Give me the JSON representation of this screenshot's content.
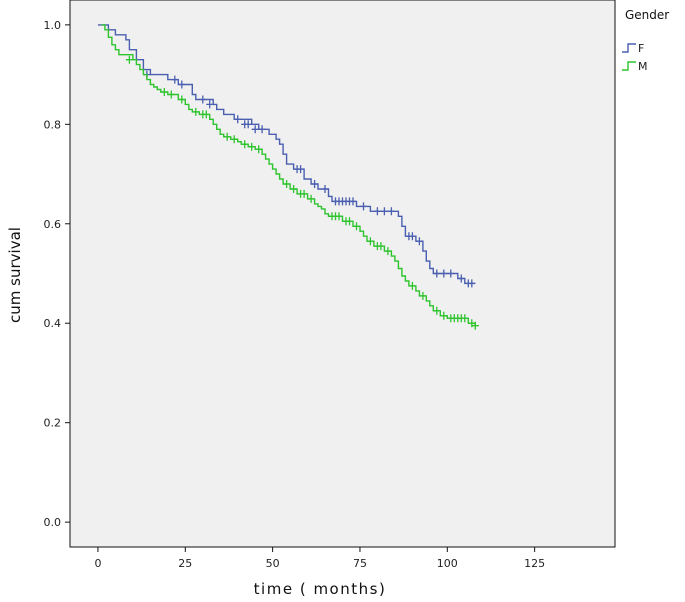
{
  "chart_data": {
    "type": "line",
    "title": "",
    "xlabel": "time ( months)",
    "ylabel": "cum survival",
    "xlim": [
      -8,
      148
    ],
    "ylim": [
      -0.05,
      1.05
    ],
    "xticks": [
      0,
      25,
      50,
      75,
      100,
      125
    ],
    "yticks": [
      0.0,
      0.2,
      0.4,
      0.6,
      0.8,
      1.0
    ],
    "ytick_labels": [
      "0.0",
      "0.2",
      "0.4",
      "0.6",
      "0.8",
      "1.0"
    ],
    "grid": false,
    "legend": {
      "title": "Gender",
      "placement": "right-outside-top"
    },
    "series": [
      {
        "name": "F",
        "color": "#4a5fb0",
        "steps": [
          [
            0,
            1.0
          ],
          [
            3,
            0.99
          ],
          [
            5,
            0.98
          ],
          [
            8,
            0.97
          ],
          [
            9,
            0.95
          ],
          [
            11,
            0.93
          ],
          [
            13,
            0.91
          ],
          [
            15,
            0.9
          ],
          [
            20,
            0.89
          ],
          [
            23,
            0.88
          ],
          [
            27,
            0.86
          ],
          [
            28,
            0.85
          ],
          [
            33,
            0.84
          ],
          [
            34,
            0.83
          ],
          [
            36,
            0.82
          ],
          [
            39,
            0.81
          ],
          [
            44,
            0.8
          ],
          [
            46,
            0.79
          ],
          [
            49,
            0.78
          ],
          [
            51,
            0.77
          ],
          [
            52,
            0.76
          ],
          [
            53,
            0.74
          ],
          [
            54,
            0.72
          ],
          [
            56,
            0.71
          ],
          [
            59,
            0.69
          ],
          [
            61,
            0.68
          ],
          [
            63,
            0.67
          ],
          [
            66,
            0.655
          ],
          [
            67,
            0.645
          ],
          [
            74,
            0.635
          ],
          [
            78,
            0.625
          ],
          [
            86,
            0.615
          ],
          [
            87,
            0.595
          ],
          [
            88,
            0.575
          ],
          [
            91,
            0.565
          ],
          [
            93,
            0.545
          ],
          [
            94,
            0.525
          ],
          [
            95,
            0.51
          ],
          [
            96,
            0.5
          ],
          [
            103,
            0.49
          ],
          [
            105,
            0.48
          ],
          [
            108,
            0.48
          ]
        ],
        "censored": [
          [
            14,
            0.9
          ],
          [
            22,
            0.89
          ],
          [
            24,
            0.88
          ],
          [
            30,
            0.85
          ],
          [
            32,
            0.84
          ],
          [
            40,
            0.81
          ],
          [
            42,
            0.8
          ],
          [
            43,
            0.8
          ],
          [
            45,
            0.79
          ],
          [
            47,
            0.79
          ],
          [
            57,
            0.71
          ],
          [
            58,
            0.71
          ],
          [
            62,
            0.68
          ],
          [
            65,
            0.67
          ],
          [
            68,
            0.645
          ],
          [
            69,
            0.645
          ],
          [
            70,
            0.645
          ],
          [
            71,
            0.645
          ],
          [
            72,
            0.645
          ],
          [
            73,
            0.645
          ],
          [
            76,
            0.635
          ],
          [
            80,
            0.625
          ],
          [
            82,
            0.625
          ],
          [
            84,
            0.625
          ],
          [
            89,
            0.575
          ],
          [
            90,
            0.575
          ],
          [
            92,
            0.565
          ],
          [
            97,
            0.5
          ],
          [
            99,
            0.5
          ],
          [
            101,
            0.5
          ],
          [
            104,
            0.49
          ],
          [
            106,
            0.48
          ],
          [
            107,
            0.48
          ]
        ]
      },
      {
        "name": "M",
        "color": "#2ec42e",
        "steps": [
          [
            1,
            1.0
          ],
          [
            2,
            0.99
          ],
          [
            3,
            0.975
          ],
          [
            4,
            0.96
          ],
          [
            5,
            0.95
          ],
          [
            6,
            0.94
          ],
          [
            10,
            0.93
          ],
          [
            11,
            0.92
          ],
          [
            12,
            0.91
          ],
          [
            13,
            0.9
          ],
          [
            14,
            0.89
          ],
          [
            15,
            0.88
          ],
          [
            16,
            0.875
          ],
          [
            17,
            0.87
          ],
          [
            18,
            0.865
          ],
          [
            20,
            0.86
          ],
          [
            23,
            0.85
          ],
          [
            25,
            0.84
          ],
          [
            26,
            0.83
          ],
          [
            27,
            0.825
          ],
          [
            29,
            0.82
          ],
          [
            32,
            0.81
          ],
          [
            33,
            0.8
          ],
          [
            34,
            0.79
          ],
          [
            35,
            0.78
          ],
          [
            36,
            0.775
          ],
          [
            38,
            0.77
          ],
          [
            40,
            0.765
          ],
          [
            41,
            0.76
          ],
          [
            43,
            0.755
          ],
          [
            45,
            0.75
          ],
          [
            47,
            0.74
          ],
          [
            48,
            0.73
          ],
          [
            49,
            0.72
          ],
          [
            50,
            0.71
          ],
          [
            51,
            0.7
          ],
          [
            52,
            0.69
          ],
          [
            53,
            0.68
          ],
          [
            55,
            0.67
          ],
          [
            57,
            0.66
          ],
          [
            60,
            0.65
          ],
          [
            62,
            0.64
          ],
          [
            63,
            0.635
          ],
          [
            64,
            0.63
          ],
          [
            65,
            0.62
          ],
          [
            66,
            0.615
          ],
          [
            70,
            0.605
          ],
          [
            73,
            0.595
          ],
          [
            75,
            0.585
          ],
          [
            76,
            0.575
          ],
          [
            77,
            0.565
          ],
          [
            79,
            0.555
          ],
          [
            82,
            0.545
          ],
          [
            84,
            0.535
          ],
          [
            85,
            0.525
          ],
          [
            86,
            0.51
          ],
          [
            87,
            0.495
          ],
          [
            88,
            0.485
          ],
          [
            89,
            0.475
          ],
          [
            91,
            0.465
          ],
          [
            92,
            0.455
          ],
          [
            94,
            0.445
          ],
          [
            95,
            0.435
          ],
          [
            96,
            0.425
          ],
          [
            98,
            0.415
          ],
          [
            100,
            0.41
          ],
          [
            106,
            0.4
          ],
          [
            108,
            0.395
          ]
        ],
        "censored": [
          [
            9,
            0.93
          ],
          [
            19,
            0.865
          ],
          [
            21,
            0.86
          ],
          [
            24,
            0.85
          ],
          [
            28,
            0.825
          ],
          [
            30,
            0.82
          ],
          [
            31,
            0.82
          ],
          [
            37,
            0.775
          ],
          [
            39,
            0.77
          ],
          [
            42,
            0.76
          ],
          [
            44,
            0.755
          ],
          [
            46,
            0.75
          ],
          [
            54,
            0.68
          ],
          [
            56,
            0.67
          ],
          [
            58,
            0.66
          ],
          [
            59,
            0.66
          ],
          [
            61,
            0.65
          ],
          [
            67,
            0.615
          ],
          [
            68,
            0.615
          ],
          [
            69,
            0.615
          ],
          [
            71,
            0.605
          ],
          [
            72,
            0.605
          ],
          [
            74,
            0.595
          ],
          [
            78,
            0.565
          ],
          [
            80,
            0.555
          ],
          [
            81,
            0.555
          ],
          [
            83,
            0.545
          ],
          [
            90,
            0.475
          ],
          [
            93,
            0.455
          ],
          [
            97,
            0.425
          ],
          [
            99,
            0.415
          ],
          [
            101,
            0.41
          ],
          [
            102,
            0.41
          ],
          [
            103,
            0.41
          ],
          [
            104,
            0.41
          ],
          [
            105,
            0.41
          ],
          [
            107,
            0.4
          ],
          [
            108,
            0.395
          ]
        ]
      }
    ]
  }
}
